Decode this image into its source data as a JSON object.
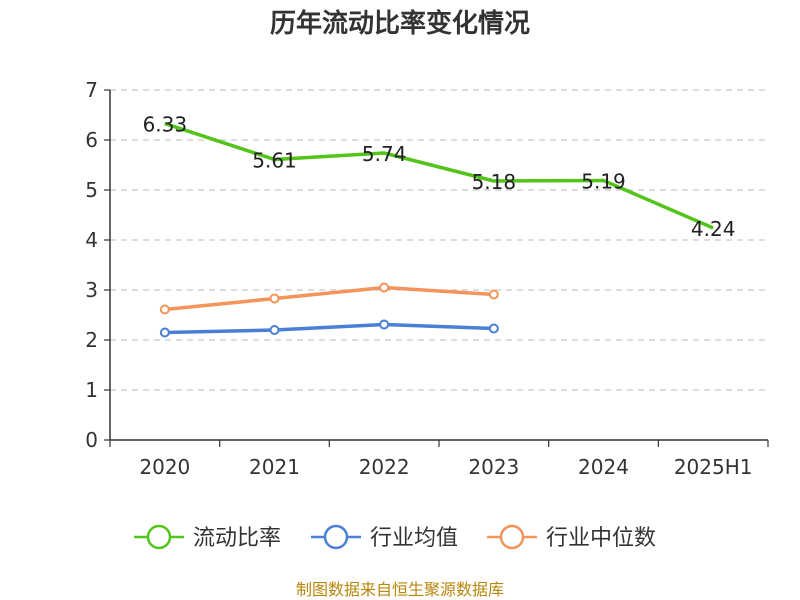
{
  "chart_data": {
    "type": "line",
    "title": "历年流动比率变化情况",
    "categories": [
      "2020",
      "2021",
      "2022",
      "2023",
      "2024",
      "2025H1"
    ],
    "ylim": [
      0,
      7
    ],
    "yticks": [
      "0",
      "1",
      "2",
      "3",
      "4",
      "5",
      "6",
      "7"
    ],
    "grid": true,
    "legend_position": "bottom",
    "series": [
      {
        "name": "流动比率",
        "color": "#52c41a",
        "values": [
          6.33,
          5.61,
          5.74,
          5.18,
          5.19,
          4.24
        ],
        "labels": [
          "6.33",
          "5.61",
          "5.74",
          "5.18",
          "5.19",
          "4.24"
        ],
        "show_markers": false
      },
      {
        "name": "行业均值",
        "color": "#4a7fd8",
        "values": [
          2.15,
          2.2,
          2.31,
          2.23,
          null,
          null
        ],
        "show_markers": true
      },
      {
        "name": "行业中位数",
        "color": "#f4935a",
        "values": [
          2.61,
          2.83,
          3.05,
          2.91,
          null,
          null
        ],
        "show_markers": true
      }
    ]
  },
  "source": "制图数据来自恒生聚源数据库"
}
